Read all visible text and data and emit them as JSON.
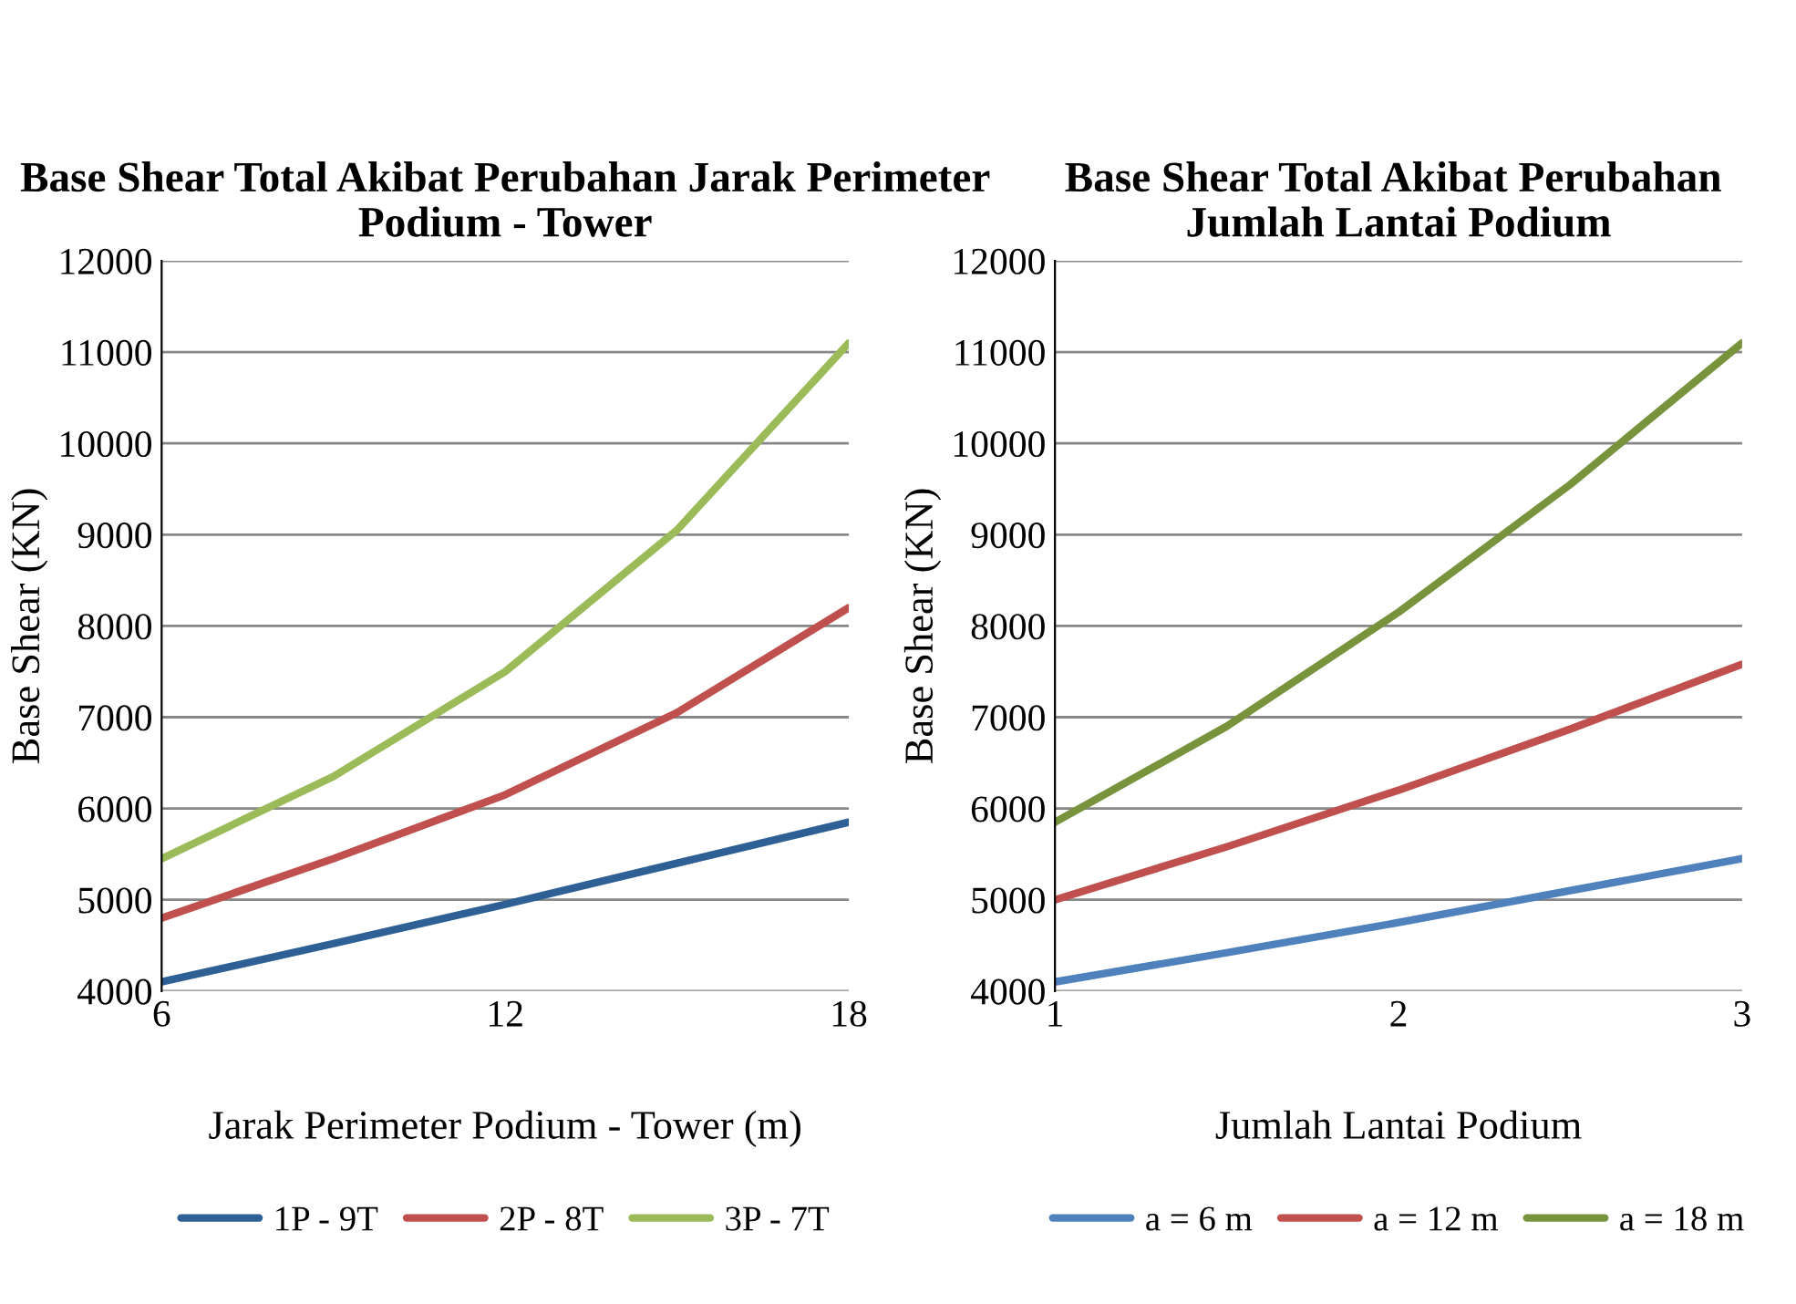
{
  "chart_data": [
    {
      "type": "line",
      "title": "Base Shear Total Akibat Perubahan Jarak Perimeter Podium - Tower",
      "xlabel": "Jarak Perimeter Podium - Tower (m)",
      "ylabel": "Base Shear (KN)",
      "x": [
        6,
        9,
        12,
        15,
        18
      ],
      "xlim": [
        6,
        18
      ],
      "xticks": [
        6,
        12,
        18
      ],
      "ylim": [
        4000,
        12000
      ],
      "yticks": [
        4000,
        5000,
        6000,
        7000,
        8000,
        9000,
        10000,
        11000,
        12000
      ],
      "grid": "y",
      "legend": "bottom",
      "series": [
        {
          "name": "1P - 9T",
          "color": "#2e5f95",
          "values": [
            4100,
            4520,
            4950,
            5400,
            5850
          ]
        },
        {
          "name": "2P - 8T",
          "color": "#c0504d",
          "values": [
            4800,
            5450,
            6150,
            7050,
            8200
          ]
        },
        {
          "name": "3P - 7T",
          "color": "#9bbb59",
          "values": [
            5450,
            6350,
            7500,
            9050,
            11100
          ]
        }
      ]
    },
    {
      "type": "line",
      "title": "Base Shear Total Akibat Perubahan  Jumlah Lantai Podium",
      "xlabel": "Jumlah Lantai Podium",
      "ylabel": "Base Shear (KN)",
      "x": [
        1,
        1.5,
        2,
        2.5,
        3
      ],
      "xlim": [
        1,
        3
      ],
      "xticks": [
        1,
        2,
        3
      ],
      "ylim": [
        4000,
        12000
      ],
      "yticks": [
        4000,
        5000,
        6000,
        7000,
        8000,
        9000,
        10000,
        11000,
        12000
      ],
      "grid": "y",
      "legend": "bottom",
      "series": [
        {
          "name": "a = 6 m",
          "color": "#4f81bd",
          "values": [
            4100,
            4420,
            4750,
            5100,
            5450
          ]
        },
        {
          "name": "a = 12 m",
          "color": "#c0504d",
          "values": [
            5000,
            5580,
            6200,
            6870,
            7580
          ]
        },
        {
          "name": "a = 18 m",
          "color": "#77933c",
          "values": [
            5850,
            6900,
            8150,
            9550,
            11100
          ]
        }
      ]
    }
  ]
}
